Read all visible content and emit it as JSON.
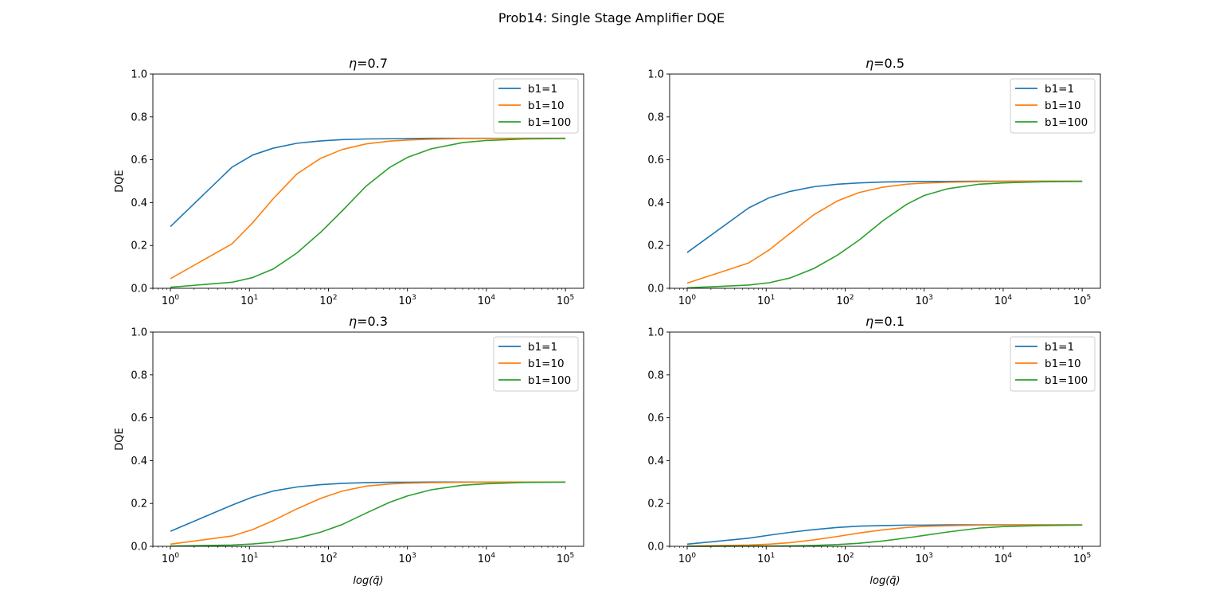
{
  "figure": {
    "suptitle": "Prob14: Single Stage Amplifier DQE"
  },
  "colors": {
    "b1=1": "#1f77b4",
    "b1=10": "#ff7f0e",
    "b1=100": "#2ca02c",
    "axes": "#000000",
    "background": "#ffffff"
  },
  "chart_data": [
    {
      "type": "line",
      "title_prefix": "η",
      "title_value": "=0.7",
      "xlabel": "",
      "ylabel": "DQE",
      "xscale": "log",
      "xlim": [
        0.6,
        170000
      ],
      "ylim": [
        0,
        1.0
      ],
      "yticks": [
        "0.0",
        "0.2",
        "0.4",
        "0.6",
        "0.8",
        "1.0"
      ],
      "xticks": [
        "10^0",
        "10^1",
        "10^2",
        "10^3",
        "10^4",
        "10^5"
      ],
      "legend_position": "upper right",
      "x": [
        1,
        6,
        11,
        20,
        40,
        80,
        150,
        300,
        600,
        1000,
        2000,
        5000,
        10000,
        30000,
        100000
      ],
      "series": [
        {
          "name": "b1=1",
          "values": [
            0.288,
            0.565,
            0.622,
            0.654,
            0.677,
            0.688,
            0.694,
            0.697,
            0.698,
            0.699,
            0.7,
            0.7,
            0.7,
            0.7,
            0.7
          ]
        },
        {
          "name": "b1=10",
          "values": [
            0.045,
            0.207,
            0.306,
            0.418,
            0.534,
            0.607,
            0.648,
            0.674,
            0.687,
            0.692,
            0.696,
            0.699,
            0.699,
            0.7,
            0.7
          ]
        },
        {
          "name": "b1=100",
          "values": [
            0.005,
            0.028,
            0.05,
            0.09,
            0.165,
            0.262,
            0.362,
            0.477,
            0.565,
            0.611,
            0.651,
            0.68,
            0.69,
            0.697,
            0.699
          ]
        }
      ]
    },
    {
      "type": "line",
      "title_prefix": "η",
      "title_value": "=0.5",
      "xlabel": "",
      "ylabel": "",
      "xscale": "log",
      "xlim": [
        0.6,
        170000
      ],
      "ylim": [
        0,
        1.0
      ],
      "yticks": [
        "0.0",
        "0.2",
        "0.4",
        "0.6",
        "0.8",
        "1.0"
      ],
      "xticks": [
        "10^0",
        "10^1",
        "10^2",
        "10^3",
        "10^4",
        "10^5"
      ],
      "legend_position": "upper right",
      "x": [
        1,
        6,
        11,
        20,
        40,
        80,
        150,
        300,
        600,
        1000,
        2000,
        5000,
        10000,
        30000,
        100000
      ],
      "series": [
        {
          "name": "b1=1",
          "values": [
            0.167,
            0.375,
            0.423,
            0.452,
            0.474,
            0.486,
            0.492,
            0.496,
            0.498,
            0.499,
            0.499,
            0.5,
            0.5,
            0.5,
            0.5
          ]
        },
        {
          "name": "b1=10",
          "values": [
            0.024,
            0.118,
            0.18,
            0.256,
            0.343,
            0.408,
            0.447,
            0.472,
            0.486,
            0.491,
            0.495,
            0.498,
            0.499,
            0.5,
            0.5
          ]
        },
        {
          "name": "b1=100",
          "values": [
            0.002,
            0.015,
            0.026,
            0.048,
            0.092,
            0.155,
            0.225,
            0.315,
            0.392,
            0.433,
            0.465,
            0.486,
            0.492,
            0.497,
            0.499
          ]
        }
      ]
    },
    {
      "type": "line",
      "title_prefix": "η",
      "title_value": "=0.3",
      "xlabel": "log(q̄)",
      "ylabel": "DQE",
      "xscale": "log",
      "xlim": [
        0.6,
        170000
      ],
      "ylim": [
        0,
        1.0
      ],
      "yticks": [
        "0.0",
        "0.2",
        "0.4",
        "0.6",
        "0.8",
        "1.0"
      ],
      "xticks": [
        "10^0",
        "10^1",
        "10^2",
        "10^3",
        "10^4",
        "10^5"
      ],
      "legend_position": "upper right",
      "x": [
        1,
        6,
        11,
        20,
        40,
        80,
        150,
        300,
        600,
        1000,
        2000,
        5000,
        10000,
        30000,
        100000
      ],
      "series": [
        {
          "name": "b1=1",
          "values": [
            0.07,
            0.192,
            0.23,
            0.258,
            0.277,
            0.288,
            0.294,
            0.297,
            0.299,
            0.299,
            0.3,
            0.3,
            0.3,
            0.3,
            0.3
          ]
        },
        {
          "name": "b1=10",
          "values": [
            0.01,
            0.048,
            0.078,
            0.12,
            0.175,
            0.224,
            0.258,
            0.281,
            0.291,
            0.295,
            0.297,
            0.299,
            0.3,
            0.3,
            0.3
          ]
        },
        {
          "name": "b1=100",
          "values": [
            0.001,
            0.006,
            0.011,
            0.019,
            0.038,
            0.066,
            0.102,
            0.155,
            0.206,
            0.235,
            0.264,
            0.285,
            0.292,
            0.298,
            0.3
          ]
        }
      ]
    },
    {
      "type": "line",
      "title_prefix": "η",
      "title_value": "=0.1",
      "xlabel": "log(q̄)",
      "ylabel": "",
      "xscale": "log",
      "xlim": [
        0.6,
        170000
      ],
      "ylim": [
        0,
        1.0
      ],
      "yticks": [
        "0.0",
        "0.2",
        "0.4",
        "0.6",
        "0.8",
        "1.0"
      ],
      "xticks": [
        "10^0",
        "10^1",
        "10^2",
        "10^3",
        "10^4",
        "10^5"
      ],
      "legend_position": "upper right",
      "x": [
        1,
        6,
        11,
        20,
        40,
        80,
        150,
        300,
        600,
        1000,
        2000,
        5000,
        10000,
        30000,
        100000
      ],
      "series": [
        {
          "name": "b1=1",
          "values": [
            0.01,
            0.038,
            0.052,
            0.065,
            0.078,
            0.088,
            0.094,
            0.097,
            0.099,
            0.099,
            0.1,
            0.1,
            0.1,
            0.1,
            0.1
          ]
        },
        {
          "name": "b1=10",
          "values": [
            0.001,
            0.006,
            0.01,
            0.017,
            0.03,
            0.046,
            0.062,
            0.077,
            0.088,
            0.093,
            0.096,
            0.099,
            0.099,
            0.1,
            0.1
          ]
        },
        {
          "name": "b1=100",
          "values": [
            0.0,
            0.001,
            0.001,
            0.002,
            0.004,
            0.008,
            0.014,
            0.025,
            0.039,
            0.051,
            0.067,
            0.085,
            0.092,
            0.097,
            0.099
          ]
        }
      ]
    }
  ]
}
